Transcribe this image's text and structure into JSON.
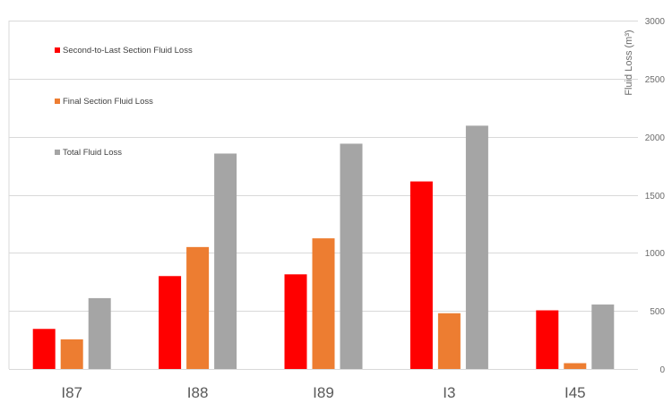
{
  "chart_data": {
    "type": "bar",
    "categories": [
      "I87",
      "I88",
      "I89",
      "I3",
      "I45"
    ],
    "series": [
      {
        "name": "Second-to-Last Section Fluid Loss",
        "color": "#ff0000",
        "values": [
          345,
          800,
          815,
          1615,
          505
        ]
      },
      {
        "name": "Final Section Fluid Loss",
        "color": "#ed7d31",
        "values": [
          255,
          1050,
          1125,
          480,
          50
        ]
      },
      {
        "name": "Total Fluid Loss",
        "color": "#a5a5a5",
        "values": [
          610,
          1855,
          1940,
          2095,
          555
        ]
      }
    ],
    "ylabel": "Fluid Loss (m³)",
    "ylim": [
      0,
      3000
    ],
    "yticks": [
      0,
      500,
      1000,
      1500,
      2000,
      2500,
      3000
    ],
    "grid": true,
    "legend_position": "top-left",
    "y_axis_side": "right",
    "gridline_color": "#d9d9d9"
  }
}
